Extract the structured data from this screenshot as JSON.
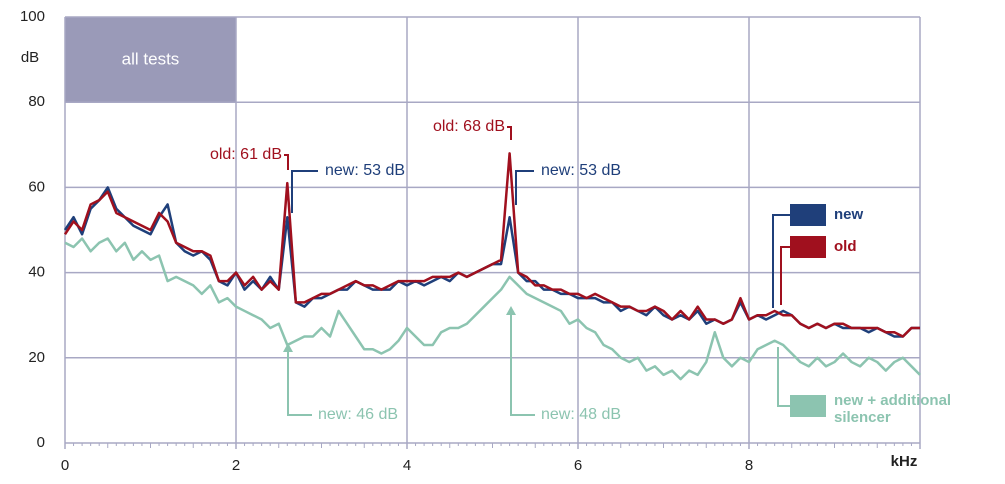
{
  "chart_data": {
    "type": "line",
    "badge": "all tests",
    "ylabel": "dB",
    "xlabel": "kHz",
    "xlim": [
      0,
      10
    ],
    "xticks": [
      0,
      2,
      4,
      6,
      8
    ],
    "ylim": [
      0,
      100
    ],
    "yticks": [
      0,
      20,
      40,
      60,
      80,
      100
    ],
    "grid": true,
    "x": [
      0,
      0.1,
      0.2,
      0.3,
      0.4,
      0.5,
      0.6,
      0.7,
      0.8,
      0.9,
      1,
      1.1,
      1.2,
      1.3,
      1.4,
      1.5,
      1.6,
      1.7,
      1.8,
      1.9,
      2,
      2.1,
      2.2,
      2.3,
      2.4,
      2.5,
      2.6,
      2.7,
      2.8,
      2.9,
      3,
      3.1,
      3.2,
      3.3,
      3.4,
      3.5,
      3.6,
      3.7,
      3.8,
      3.9,
      4,
      4.1,
      4.2,
      4.3,
      4.4,
      4.5,
      4.6,
      4.7,
      4.8,
      4.9,
      5,
      5.1,
      5.2,
      5.3,
      5.4,
      5.5,
      5.6,
      5.7,
      5.8,
      5.9,
      6,
      6.1,
      6.2,
      6.3,
      6.4,
      6.5,
      6.6,
      6.7,
      6.8,
      6.9,
      7,
      7.1,
      7.2,
      7.3,
      7.4,
      7.5,
      7.6,
      7.7,
      7.8,
      7.9,
      8,
      8.1,
      8.2,
      8.3,
      8.4,
      8.5,
      8.6,
      8.7,
      8.8,
      8.9,
      9,
      9.1,
      9.2,
      9.3,
      9.4,
      9.5,
      9.6,
      9.7,
      9.8,
      9.9,
      10
    ],
    "series": [
      {
        "name": "new + additional silencer",
        "color": "#8cc4b0",
        "values": [
          47,
          46,
          48,
          45,
          47,
          48,
          45,
          47,
          43,
          45,
          43,
          44,
          38,
          39,
          38,
          37,
          35,
          37,
          33,
          34,
          32,
          31,
          30,
          29,
          27,
          28,
          23,
          24,
          25,
          25,
          27,
          25,
          31,
          28,
          25,
          22,
          22,
          21,
          22,
          24,
          27,
          25,
          23,
          23,
          26,
          27,
          27,
          28,
          30,
          32,
          34,
          36,
          39,
          37,
          35,
          34,
          33,
          32,
          31,
          28,
          29,
          27,
          26,
          23,
          22,
          20,
          19,
          20,
          17,
          18,
          16,
          17,
          15,
          17,
          16,
          19,
          26,
          20,
          18,
          20,
          19,
          22,
          23,
          24,
          23,
          21,
          19,
          18,
          20,
          18,
          19,
          21,
          19,
          18,
          20,
          19,
          17,
          19,
          20,
          18,
          16
        ]
      },
      {
        "name": "new",
        "color": "#1f3f7a",
        "values": [
          50,
          53,
          49,
          55,
          57,
          60,
          55,
          53,
          51,
          50,
          49,
          53,
          56,
          47,
          45,
          44,
          45,
          43,
          38,
          37,
          40,
          36,
          38,
          36,
          39,
          36,
          53,
          33,
          32,
          34,
          34,
          35,
          36,
          36,
          38,
          37,
          36,
          36,
          36,
          38,
          37,
          38,
          37,
          38,
          39,
          38,
          40,
          39,
          40,
          41,
          42,
          42,
          53,
          40,
          38,
          38,
          36,
          36,
          35,
          35,
          34,
          34,
          34,
          33,
          33,
          31,
          32,
          31,
          30,
          32,
          30,
          29,
          30,
          29,
          31,
          28,
          29,
          28,
          29,
          33,
          29,
          30,
          29,
          30,
          31,
          30,
          28,
          27,
          28,
          27,
          28,
          27,
          27,
          27,
          26,
          27,
          26,
          25,
          25,
          27,
          27
        ]
      },
      {
        "name": "old",
        "color": "#a0101e",
        "values": [
          49,
          52,
          50,
          56,
          57,
          59,
          54,
          53,
          52,
          51,
          50,
          54,
          52,
          47,
          46,
          45,
          45,
          44,
          38,
          38,
          40,
          37,
          39,
          36,
          38,
          36,
          61,
          33,
          33,
          34,
          35,
          35,
          36,
          37,
          38,
          37,
          37,
          36,
          37,
          38,
          38,
          38,
          38,
          39,
          39,
          39,
          40,
          39,
          40,
          41,
          42,
          43,
          68,
          40,
          39,
          37,
          37,
          36,
          36,
          35,
          35,
          34,
          35,
          34,
          33,
          32,
          32,
          31,
          31,
          32,
          31,
          29,
          31,
          29,
          32,
          29,
          29,
          28,
          29,
          34,
          29,
          30,
          30,
          31,
          30,
          30,
          28,
          27,
          28,
          27,
          28,
          28,
          27,
          27,
          27,
          27,
          26,
          26,
          25,
          27,
          27
        ]
      }
    ],
    "annotations": [
      "old: 61 dB",
      "new: 53 dB",
      "old: 68 dB",
      "new: 53 dB",
      "new: 46 dB",
      "new: 48 dB"
    ]
  }
}
